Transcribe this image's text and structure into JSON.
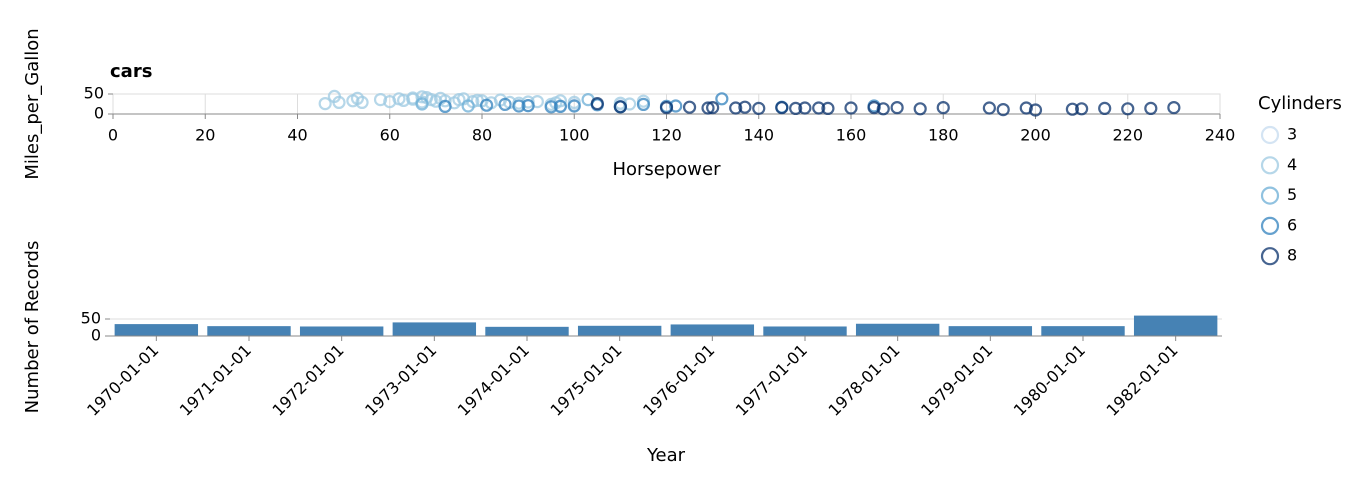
{
  "chart_data": [
    {
      "type": "scatter",
      "title": "cars",
      "x_label": "Horsepower",
      "y_label": "Miles_per_Gallon",
      "legend_title": "Cylinders",
      "legend": "right",
      "xlim": [
        0,
        240
      ],
      "xticks": [
        0,
        20,
        40,
        60,
        80,
        100,
        120,
        140,
        160,
        180,
        200,
        220,
        240
      ],
      "ylim": [
        0,
        50
      ],
      "yticks": [
        0,
        50
      ],
      "grid": true,
      "series": [
        {
          "name": "3",
          "color": "#c6dbef",
          "x": [
            90,
            97,
            100,
            110
          ],
          "values": [
            21,
            20,
            23,
            22
          ]
        },
        {
          "name": "4",
          "color": "#9ecae1",
          "x": [
            46,
            48,
            49,
            52,
            53,
            54,
            58,
            60,
            62,
            63,
            65,
            65,
            67,
            67,
            68,
            69,
            70,
            71,
            72,
            74,
            75,
            76,
            78,
            79,
            80,
            82,
            84,
            86,
            88,
            90,
            92,
            95,
            96,
            97,
            100,
            110,
            112,
            115
          ],
          "values": [
            26,
            44,
            29,
            33,
            39,
            29,
            36,
            31,
            38,
            34,
            37,
            40,
            43,
            30,
            41,
            36,
            32,
            39,
            33,
            28,
            36,
            38,
            31,
            34,
            33,
            28,
            35,
            29,
            27,
            30,
            31,
            24,
            28,
            33,
            29,
            27,
            25,
            32
          ]
        },
        {
          "name": "5",
          "color": "#6baed6",
          "x": [
            67,
            77,
            103
          ],
          "values": [
            25,
            20,
            36
          ]
        },
        {
          "name": "6",
          "color": "#3182bd",
          "x": [
            72,
            81,
            85,
            88,
            90,
            95,
            97,
            100,
            105,
            110,
            115,
            120,
            122,
            132,
            145,
            165
          ],
          "values": [
            19,
            22,
            24,
            20,
            21,
            18,
            19,
            20,
            23,
            18,
            24,
            19,
            20,
            38,
            17,
            20
          ]
        },
        {
          "name": "8",
          "color": "#08306b",
          "x": [
            105,
            110,
            120,
            125,
            129,
            130,
            135,
            137,
            140,
            145,
            148,
            150,
            153,
            155,
            160,
            165,
            167,
            170,
            175,
            180,
            190,
            193,
            198,
            200,
            208,
            210,
            215,
            220,
            225,
            230
          ],
          "values": [
            26,
            18,
            16,
            17,
            15,
            16,
            15,
            17,
            14,
            16,
            14,
            15,
            15,
            14,
            15,
            16,
            13,
            16,
            13,
            16,
            15,
            11,
            15,
            10,
            12,
            13,
            14,
            13,
            14,
            16
          ]
        }
      ]
    },
    {
      "type": "bar",
      "x_label": "Year",
      "y_label": "Number of Records",
      "color": "#4682b4",
      "categories": [
        "1970-01-01",
        "1971-01-01",
        "1972-01-01",
        "1973-01-01",
        "1974-01-01",
        "1975-01-01",
        "1976-01-01",
        "1977-01-01",
        "1978-01-01",
        "1979-01-01",
        "1980-01-01",
        "1982-01-01"
      ],
      "values": [
        35,
        29,
        28,
        40,
        27,
        30,
        34,
        28,
        36,
        29,
        29,
        60
      ],
      "ylim": [
        0,
        60
      ],
      "yticks": [
        0,
        50
      ],
      "grid": true
    }
  ]
}
